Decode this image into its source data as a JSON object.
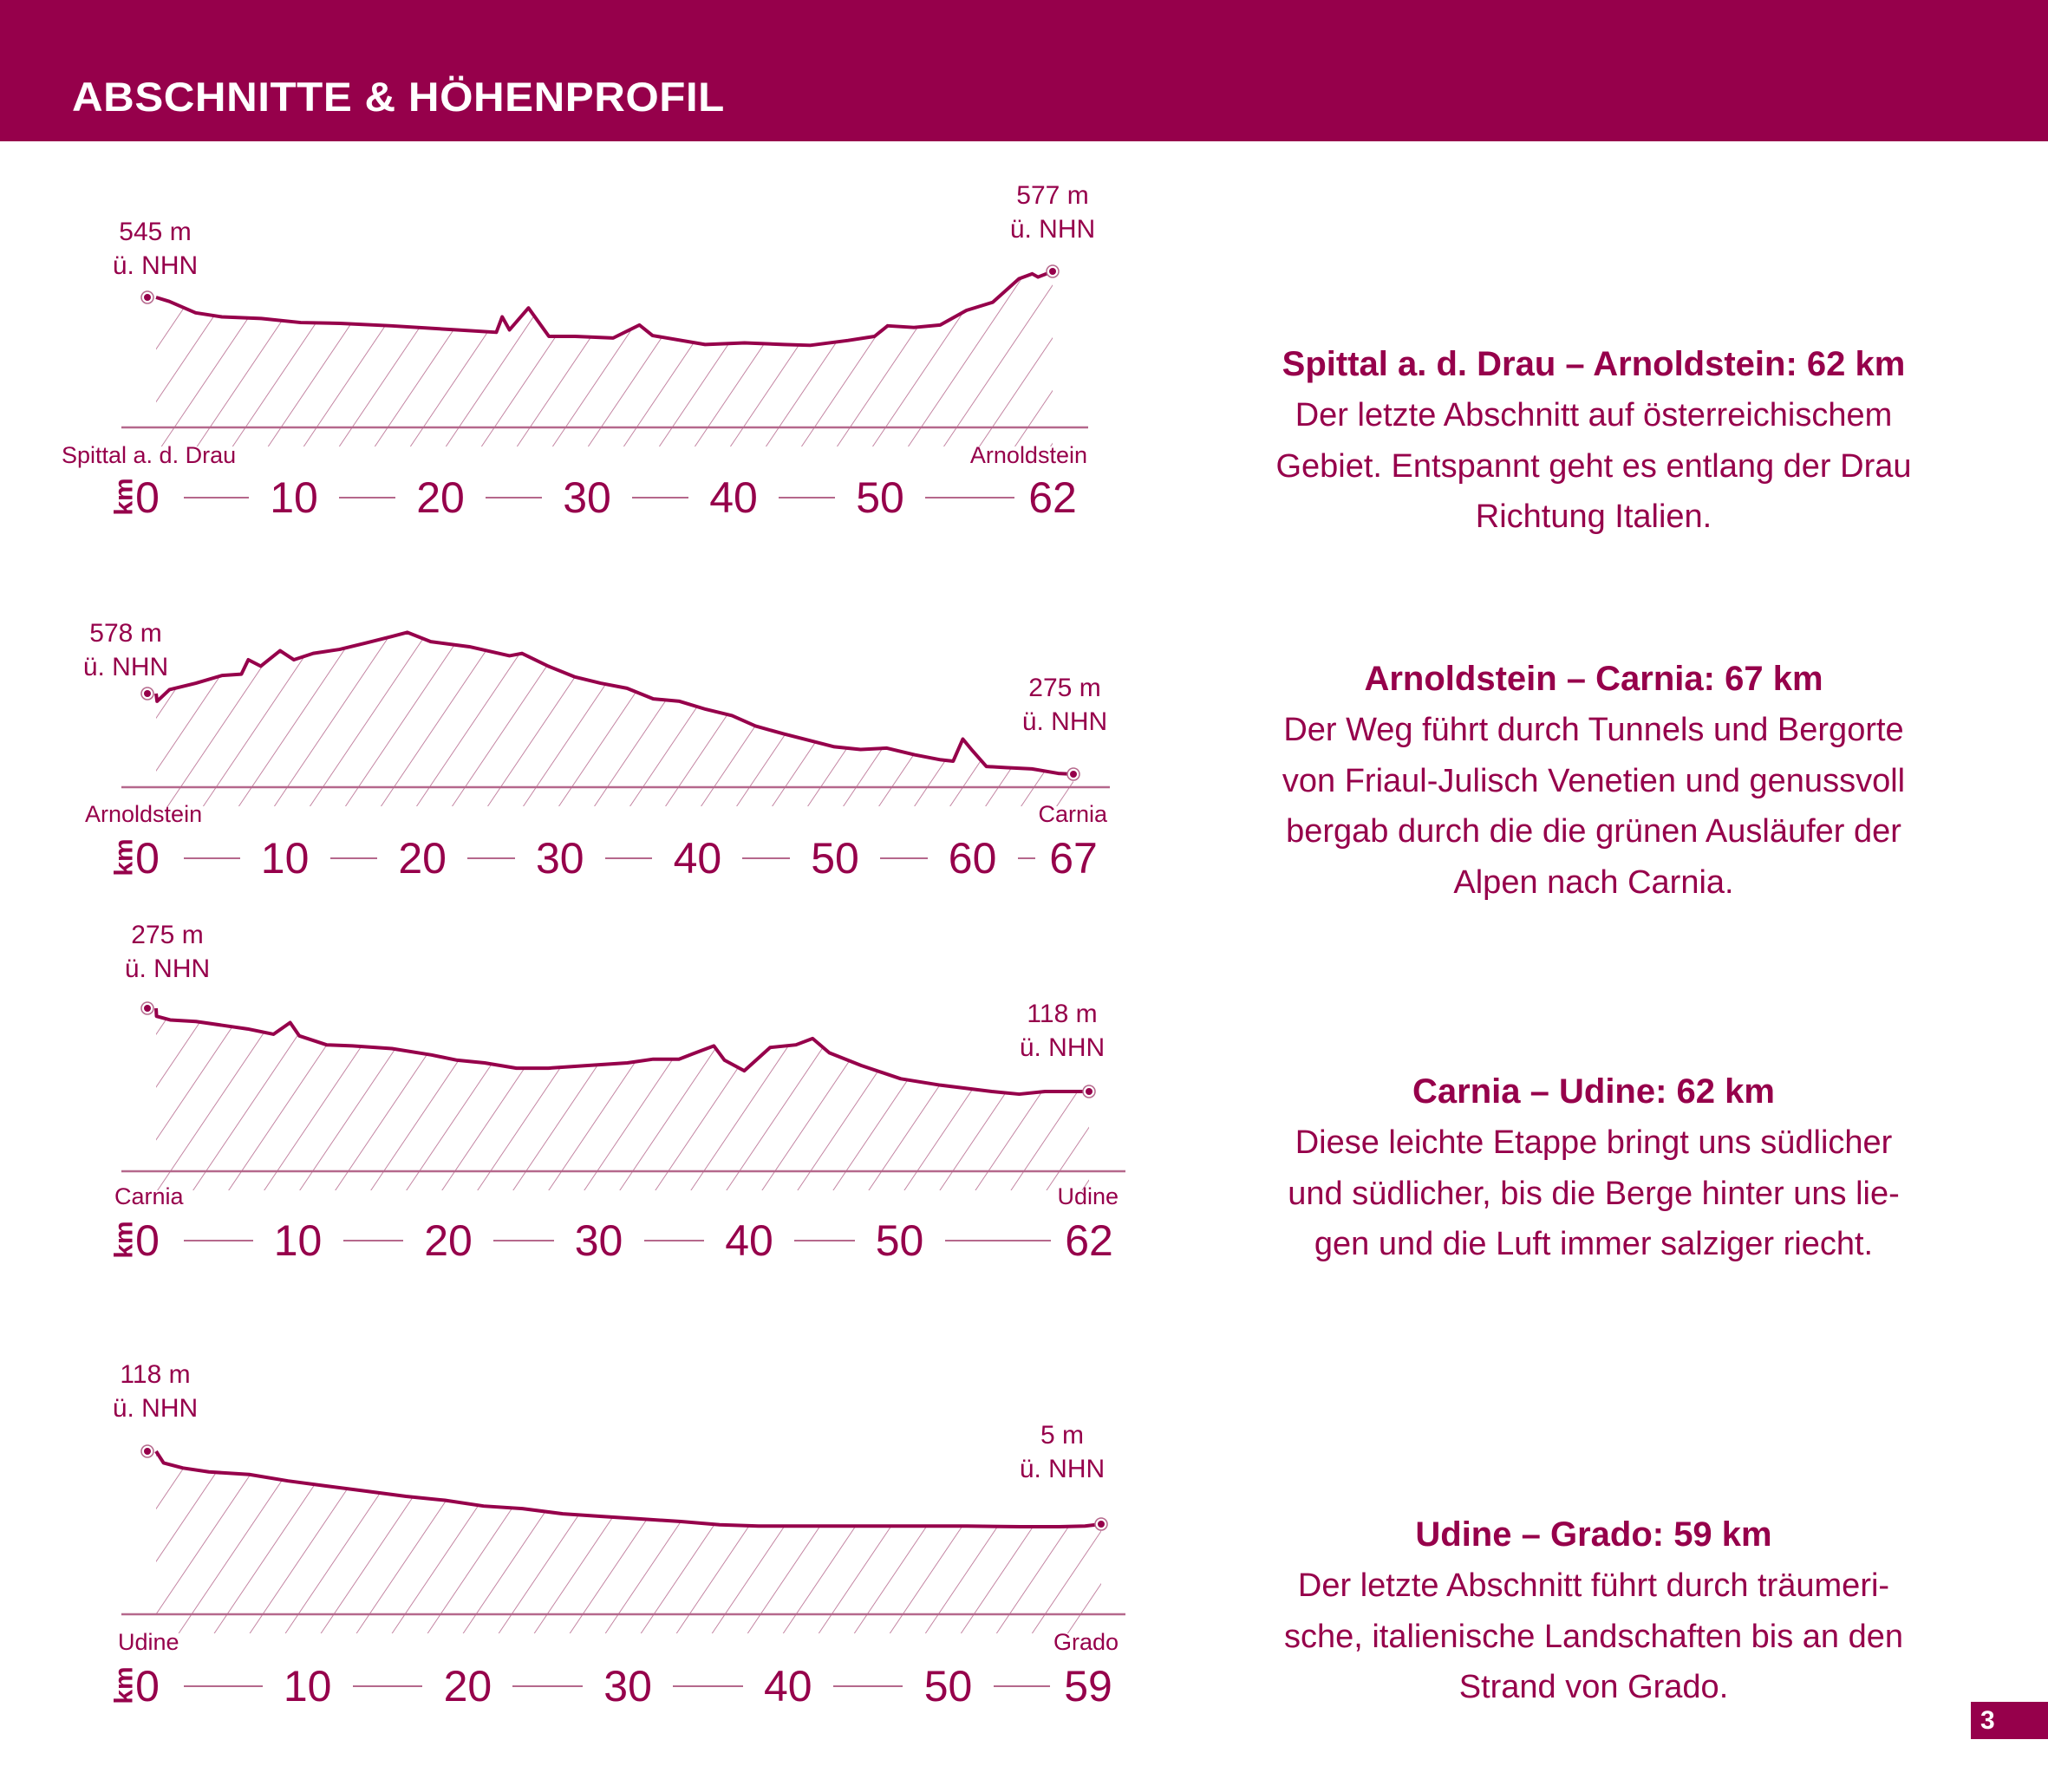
{
  "header": {
    "title": "ABSCHNITTE & HÖHENPROFIL"
  },
  "colors": {
    "brand": "#96004b",
    "hatch": "#b5688c",
    "background": "#ffffff"
  },
  "axis_unit": "km",
  "sections": [
    {
      "title": "Spittal a. d. Drau – Arnoldstein: 62 km",
      "body_lines": [
        "Der letzte Abschnitt auf österreichischem",
        "Gebiet. Entspannt geht es entlang der Drau",
        "Richtung Italien."
      ],
      "start": {
        "place": "Spittal a. d. Drau",
        "elevation": "545 m",
        "unit_line": "ü. NHN"
      },
      "end": {
        "place": "Arnoldstein",
        "elevation": "577 m",
        "unit_line": "ü. NHN"
      }
    },
    {
      "title": "Arnoldstein – Carnia: 67 km",
      "body_lines": [
        "Der Weg führt durch Tunnels und Bergorte",
        "von Friaul-Julisch Venetien und genussvoll",
        "bergab durch die die grünen Ausläufer der",
        "Alpen nach Carnia."
      ],
      "start": {
        "place": "Arnoldstein",
        "elevation": "578 m",
        "unit_line": "ü. NHN"
      },
      "end": {
        "place": "Carnia",
        "elevation": "275 m",
        "unit_line": "ü. NHN"
      }
    },
    {
      "title": "Carnia – Udine: 62 km",
      "body_lines": [
        "Diese leichte Etappe bringt uns südlicher",
        "und südlicher, bis die Berge hinter uns lie-",
        "gen und die Luft immer salziger riecht."
      ],
      "start": {
        "place": "Carnia",
        "elevation": "275 m",
        "unit_line": "ü. NHN"
      },
      "end": {
        "place": "Udine",
        "elevation": "118 m",
        "unit_line": "ü. NHN"
      }
    },
    {
      "title": "Udine – Grado: 59 km",
      "body_lines": [
        "Der letzte Abschnitt führt durch träumeri-",
        "sche, italienische Landschaften bis an den",
        "Strand von Grado."
      ],
      "start": {
        "place": "Udine",
        "elevation": "118 m",
        "unit_line": "ü. NHN"
      },
      "end": {
        "place": "Grado",
        "elevation": "5 m",
        "unit_line": "ü. NHN"
      }
    }
  ],
  "page_number": "3",
  "chart_data": [
    {
      "type": "area",
      "title": "Spittal a. d. Drau – Arnoldstein",
      "xlabel": "km",
      "ylabel": "m ü. NHN",
      "x_ticks": [
        "0",
        "10",
        "20",
        "30",
        "40",
        "50",
        "62"
      ],
      "xlim": [
        0,
        62
      ],
      "ylim": [
        385,
        590
      ],
      "grid": false,
      "series": [
        {
          "name": "Höhenprofil",
          "x": [
            0,
            1.5,
            3.3,
            5.1,
            7.8,
            10.5,
            13.2,
            16.7,
            21.2,
            23.9,
            24.3,
            24.8,
            26.1,
            27.5,
            29.3,
            31.9,
            33.7,
            34.6,
            38.2,
            40.9,
            43.6,
            45.4,
            48.0,
            49.8,
            50.7,
            52.5,
            54.3,
            56.1,
            57.9,
            59.7,
            60.6,
            61.0,
            62
          ],
          "y": [
            545,
            540,
            526,
            521,
            519,
            514,
            513,
            510,
            505,
            502,
            521,
            505,
            532,
            497,
            497,
            495,
            511,
            498,
            487,
            489,
            487,
            486,
            492,
            497,
            510,
            508,
            511,
            529,
            539,
            568,
            574,
            570,
            577
          ]
        }
      ],
      "annotations": [
        "545 m ü. NHN",
        "577 m ü. NHN",
        "Spittal a. d. Drau",
        "Arnoldstein"
      ]
    },
    {
      "type": "area",
      "title": "Arnoldstein – Carnia",
      "xlabel": "km",
      "ylabel": "m ü. NHN",
      "x_ticks": [
        "0",
        "10",
        "20",
        "30",
        "40",
        "50",
        "60",
        "67"
      ],
      "xlim": [
        0,
        67
      ],
      "ylim": [
        226,
        830
      ],
      "grid": false,
      "series": [
        {
          "name": "Höhenprofil",
          "x": [
            0,
            0.7,
            1.6,
            3.5,
            5.4,
            6.8,
            7.3,
            8.2,
            9.6,
            10.6,
            12.0,
            13.9,
            15.8,
            17.7,
            18.8,
            20.5,
            23.3,
            26.2,
            27.1,
            29.0,
            30.9,
            32.8,
            34.7,
            36.6,
            38.5,
            40.4,
            42.3,
            44.0,
            46.0,
            47.9,
            49.7,
            51.6,
            53.5,
            55.5,
            57.4,
            58.3,
            59.0,
            59.7,
            60.7,
            62.1,
            64.0,
            65.9,
            67
          ],
          "y": [
            578,
            549,
            593,
            617,
            646,
            651,
            705,
            681,
            739,
            705,
            729,
            744,
            768,
            793,
            808,
            773,
            754,
            720,
            729,
            681,
            641,
            617,
            598,
            558,
            549,
            519,
            495,
            456,
            427,
            402,
            378,
            368,
            373,
            348,
            329,
            324,
            407,
            363,
            304,
            300,
            295,
            278,
            275
          ]
        }
      ],
      "annotations": [
        "578 m ü. NHN",
        "275 m ü. NHN",
        "Arnoldstein",
        "Carnia"
      ]
    },
    {
      "type": "area",
      "title": "Carnia – Udine",
      "xlabel": "km",
      "ylabel": "m ü. NHN",
      "x_ticks": [
        "0",
        "10",
        "20",
        "30",
        "40",
        "50",
        "62"
      ],
      "xlim": [
        0,
        62
      ],
      "ylim": [
        -32,
        300
      ],
      "grid": false,
      "series": [
        {
          "name": "Höhenprofil",
          "x": [
            0,
            0.6,
            1.5,
            3.2,
            4.9,
            6.6,
            8.3,
            9.4,
            10.0,
            11.8,
            13.5,
            16.1,
            18.7,
            20.4,
            22.2,
            24.3,
            26.4,
            29.0,
            31.6,
            33.3,
            35.0,
            35.9,
            37.3,
            38.0,
            39.3,
            41.0,
            42.7,
            43.8,
            44.9,
            47.0,
            49.6,
            52.2,
            55.6,
            57.4,
            59.1,
            62
          ],
          "y": [
            275,
            260,
            253,
            250,
            243,
            236,
            226,
            248,
            223,
            206,
            204,
            199,
            187,
            177,
            172,
            162,
            162,
            167,
            172,
            179,
            179,
            189,
            204,
            177,
            157,
            201,
            206,
            218,
            191,
            167,
            142,
            130,
            118,
            113,
            118,
            118
          ]
        }
      ],
      "annotations": [
        "275 m ü. NHN",
        "118 m ü. NHN",
        "Carnia",
        "Udine"
      ]
    },
    {
      "type": "area",
      "title": "Udine – Grado",
      "xlabel": "km",
      "ylabel": "m ü. NHN",
      "x_ticks": [
        "0",
        "10",
        "20",
        "30",
        "40",
        "50",
        "59"
      ],
      "xlim": [
        0,
        59
      ],
      "ylim": [
        -134,
        130
      ],
      "grid": false,
      "series": [
        {
          "name": "Höhenprofil",
          "x": [
            0,
            1.0,
            2.2,
            3.8,
            6.3,
            8.7,
            11.1,
            13.6,
            16.0,
            18.4,
            20.8,
            23.2,
            25.7,
            28.1,
            30.5,
            33.0,
            35.4,
            37.8,
            41.0,
            44.3,
            47.5,
            50.7,
            54.0,
            56.4,
            58.0,
            59
          ],
          "y": [
            118,
            100,
            92,
            86,
            82,
            72,
            64,
            56,
            48,
            42,
            33,
            29,
            21,
            17,
            13,
            9,
            4,
            2,
            2,
            2,
            2,
            2,
            1,
            1,
            2,
            5
          ]
        }
      ],
      "annotations": [
        "118 m ü. NHN",
        "5 m ü. NHN",
        "Udine",
        "Grado"
      ]
    }
  ]
}
